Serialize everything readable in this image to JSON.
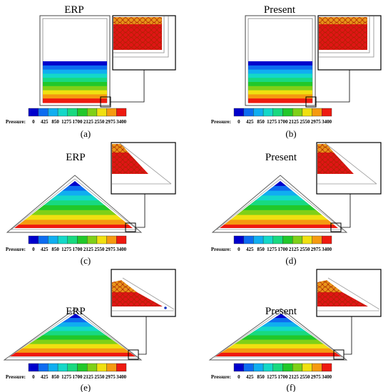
{
  "figure": {
    "panels": [
      {
        "id": "a",
        "title": "ERP",
        "caption": "(a)",
        "geometry": "tank",
        "fill_fraction": 0.45
      },
      {
        "id": "b",
        "title": "Present",
        "caption": "(b)",
        "geometry": "tank",
        "fill_fraction": 0.45
      },
      {
        "id": "c",
        "title": "ERP",
        "caption": "(c)",
        "geometry": "pile",
        "fill_fraction": 1.0
      },
      {
        "id": "d",
        "title": "Present",
        "caption": "(d)",
        "geometry": "pile",
        "fill_fraction": 1.0
      },
      {
        "id": "e",
        "title": "ERP",
        "caption": "(e)",
        "geometry": "slope",
        "fill_fraction": 1.0
      },
      {
        "id": "f",
        "title": "Present",
        "caption": "(f)",
        "geometry": "slope",
        "fill_fraction": 1.0
      }
    ],
    "colorbar": {
      "label": "Pressure:",
      "ticks": [
        "0",
        "425",
        "850",
        "1275",
        "1700",
        "2125",
        "2550",
        "2975",
        "3400"
      ],
      "colors": [
        "#0000cc",
        "#0d6cf0",
        "#10aef0",
        "#14d8c8",
        "#18d980",
        "#21c82a",
        "#7fd018",
        "#f0e010",
        "#f59a10",
        "#ee1a10"
      ]
    },
    "zoom_colors": {
      "top_particles": "#e8951a",
      "bottom_particles": "#e01515",
      "particle_edge": "#aa2200"
    }
  }
}
